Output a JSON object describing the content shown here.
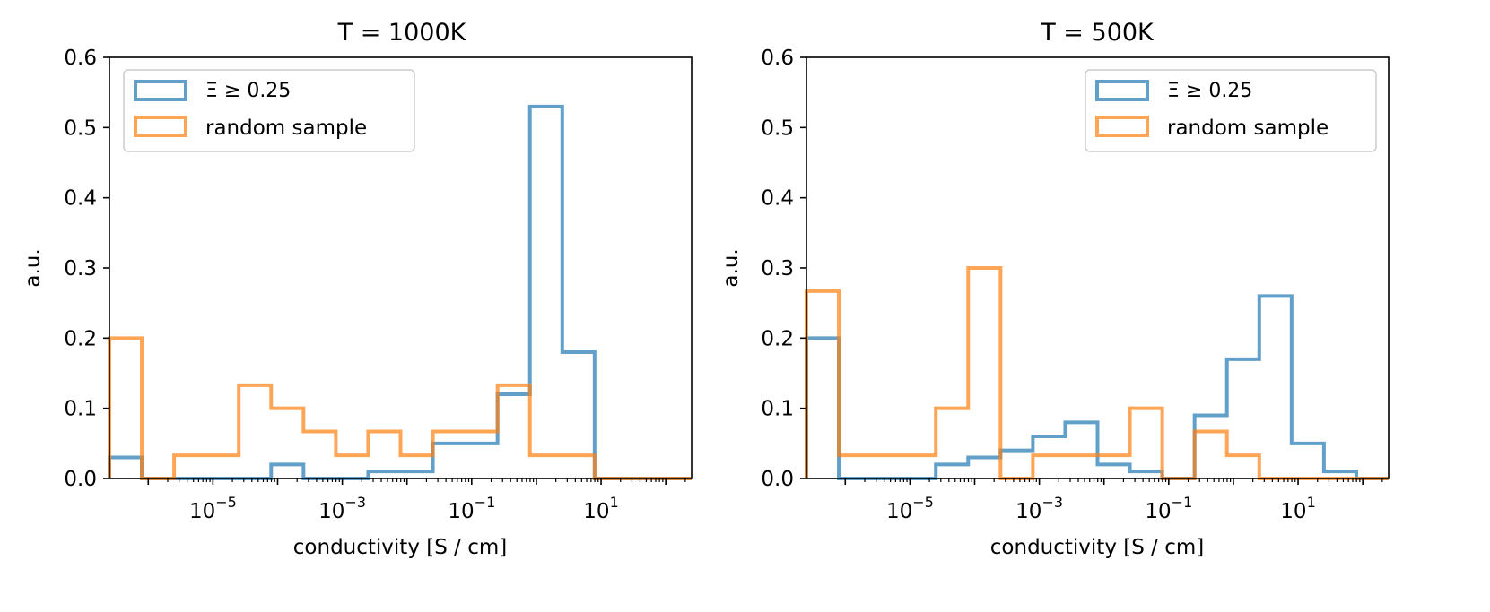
{
  "chart_data": [
    {
      "type": "histogram",
      "title": "T = 1000K",
      "xlabel": "conductivity [S / cm]",
      "ylabel": "a.u.",
      "xscale": "log",
      "xlim_log10": [
        -6.6,
        2.4
      ],
      "ylim": [
        0,
        0.6
      ],
      "yticks": [
        "0.0",
        "0.1",
        "0.2",
        "0.3",
        "0.4",
        "0.5",
        "0.6"
      ],
      "xticks": [
        {
          "base": "10",
          "exp": "−5",
          "log10": -5
        },
        {
          "base": "10",
          "exp": "−3",
          "log10": -3
        },
        {
          "base": "10",
          "exp": "−1",
          "log10": -1
        },
        {
          "base": "10",
          "exp": "1",
          "log10": 1
        }
      ],
      "legend_position": "top-left",
      "bin_edges_log10": [
        -6.6,
        -6.1,
        -5.6,
        -5.1,
        -4.6,
        -4.1,
        -3.6,
        -3.1,
        -2.6,
        -2.1,
        -1.6,
        -1.1,
        -0.6,
        -0.1,
        0.4,
        0.9,
        1.4,
        1.9,
        2.4
      ],
      "series": [
        {
          "name": "Ξ ≥ 0.25",
          "color": "#1f77b4",
          "values": [
            0.03,
            0.0,
            0.0,
            0.0,
            0.0,
            0.02,
            0.0,
            0.0,
            0.01,
            0.01,
            0.05,
            0.05,
            0.12,
            0.53,
            0.18,
            0.0,
            0.0,
            0.0
          ]
        },
        {
          "name": "random sample",
          "color": "#ff7f0e",
          "values": [
            0.2,
            0.0,
            0.033,
            0.033,
            0.133,
            0.1,
            0.067,
            0.033,
            0.067,
            0.033,
            0.067,
            0.067,
            0.133,
            0.033,
            0.033,
            0.0,
            0.0,
            0.0
          ]
        }
      ]
    },
    {
      "type": "histogram",
      "title": "T = 500K",
      "xlabel": "conductivity [S / cm]",
      "ylabel": "a.u.",
      "xscale": "log",
      "xlim_log10": [
        -6.6,
        2.4
      ],
      "ylim": [
        0,
        0.6
      ],
      "yticks": [
        "0.0",
        "0.1",
        "0.2",
        "0.3",
        "0.4",
        "0.5",
        "0.6"
      ],
      "xticks": [
        {
          "base": "10",
          "exp": "−5",
          "log10": -5
        },
        {
          "base": "10",
          "exp": "−3",
          "log10": -3
        },
        {
          "base": "10",
          "exp": "−1",
          "log10": -1
        },
        {
          "base": "10",
          "exp": "1",
          "log10": 1
        }
      ],
      "legend_position": "top-right",
      "bin_edges_log10": [
        -6.6,
        -6.1,
        -5.6,
        -5.1,
        -4.6,
        -4.1,
        -3.6,
        -3.1,
        -2.6,
        -2.1,
        -1.6,
        -1.1,
        -0.6,
        -0.1,
        0.4,
        0.9,
        1.4,
        1.9,
        2.4
      ],
      "series": [
        {
          "name": "Ξ ≥ 0.25",
          "color": "#1f77b4",
          "values": [
            0.2,
            0.0,
            0.0,
            0.0,
            0.02,
            0.03,
            0.04,
            0.06,
            0.08,
            0.02,
            0.01,
            0.0,
            0.09,
            0.17,
            0.26,
            0.05,
            0.01,
            0.0
          ]
        },
        {
          "name": "random sample",
          "color": "#ff7f0e",
          "values": [
            0.267,
            0.033,
            0.033,
            0.033,
            0.1,
            0.3,
            0.0,
            0.033,
            0.033,
            0.033,
            0.1,
            0.0,
            0.067,
            0.033,
            0.0,
            0.0,
            0.0,
            0.0
          ]
        }
      ]
    }
  ]
}
